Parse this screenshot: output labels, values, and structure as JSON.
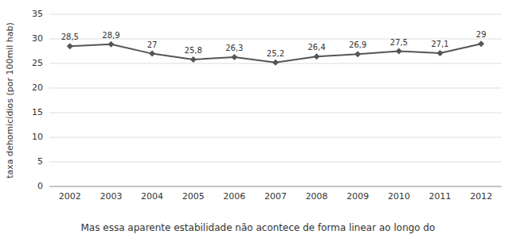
{
  "chart_data": {
    "type": "line",
    "x": [
      2002,
      2003,
      2004,
      2005,
      2006,
      2007,
      2008,
      2009,
      2010,
      2011,
      2012
    ],
    "values": [
      28.5,
      28.9,
      27.0,
      25.8,
      26.3,
      25.2,
      26.4,
      26.9,
      27.5,
      27.1,
      29.0
    ],
    "value_labels": [
      "28,5",
      "28,9",
      "27",
      "25,8",
      "26,3",
      "25,2",
      "26,4",
      "26,9",
      "27,5",
      "27,1",
      "29"
    ],
    "data_labels": true,
    "ylabel": "taxa dehomicídios (por 100mil hab)",
    "caption": "Mas essa aparente estabilidade não acontece de forma linear ao longo do",
    "xlim": [
      2001.5,
      2012.5
    ],
    "xticks": [
      2002,
      2003,
      2004,
      2005,
      2006,
      2007,
      2008,
      2009,
      2010,
      2011,
      2012
    ],
    "ylim": [
      0,
      35
    ],
    "yticks": [
      0,
      5,
      10,
      15,
      20,
      25,
      30,
      35
    ],
    "color": "#555555",
    "marker": "diamond",
    "grid": true
  }
}
